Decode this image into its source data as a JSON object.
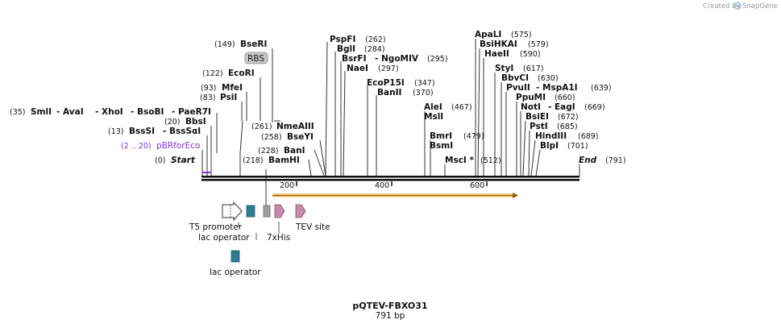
{
  "header": {
    "credit_prefix": "Created by",
    "credit_brand": "SnapGene"
  },
  "plasmid": {
    "name": "pQTEV-FBXO31",
    "length_label": "791 bp",
    "length": 791
  },
  "ends": {
    "start": {
      "label": "Start",
      "pos": "(0)"
    },
    "end": {
      "label": "End",
      "pos": "(791)"
    }
  },
  "primer": {
    "label": "pBRforEco",
    "range": "(2 .. 20)"
  },
  "ruler": {
    "ticks": [
      "200",
      "400",
      "600"
    ]
  },
  "enzymes_left": [
    {
      "pos": "(149)",
      "label": "BseRI"
    },
    {
      "pos": "(122)",
      "label": "EcoRI"
    },
    {
      "pos": "(93)",
      "label": "MfeI"
    },
    {
      "pos": "(83)",
      "label": "PsiI"
    },
    {
      "pos": "(35)",
      "label": "SmlI",
      "extra": [
        "- AvaI",
        "- XhoI",
        "- BsoBI",
        "- PaeR7I"
      ]
    },
    {
      "pos": "(20)",
      "label": "BbsI"
    },
    {
      "pos": "(13)",
      "label": "BssSI",
      "extra": [
        "- BssSαI"
      ]
    },
    {
      "pos": "(261)",
      "label": "NmeAIII"
    },
    {
      "pos": "(258)",
      "label": "BseYI"
    },
    {
      "pos": "(228)",
      "label": "BanI"
    },
    {
      "pos": "(218)",
      "label": "BamHI"
    }
  ],
  "enzymes_mid": [
    {
      "label": "PspFI",
      "pos": "(262)"
    },
    {
      "label": "BglI",
      "pos": "(284)"
    },
    {
      "label": "BsrFI",
      "pos": "(295)",
      "extra": "- NgoMIV"
    },
    {
      "label": "NaeI",
      "pos": "(297)"
    },
    {
      "label": "EcoP15I",
      "pos": "(347)"
    },
    {
      "label": "BanII",
      "pos": "(370)"
    },
    {
      "label": "AleI",
      "pos": "(467)"
    },
    {
      "label": "MslI",
      "pos": ""
    },
    {
      "label": "BmrI",
      "pos": "(479)"
    },
    {
      "label": "BsmI",
      "pos": ""
    },
    {
      "label": "MscI *",
      "pos": "(512)"
    }
  ],
  "enzymes_right": [
    {
      "label": "ApaLI",
      "pos": "(575)"
    },
    {
      "label": "BsiHKAI",
      "pos": "(579)"
    },
    {
      "label": "HaeII",
      "pos": "(590)"
    },
    {
      "label": "StyI",
      "pos": "(617)"
    },
    {
      "label": "BbvCI",
      "pos": "(630)"
    },
    {
      "label": "PvuII",
      "pos": "(639)",
      "extra": "- MspA1I"
    },
    {
      "label": "PpuMI",
      "pos": "(660)"
    },
    {
      "label": "NotI",
      "pos": "(669)",
      "extra": "- EagI"
    },
    {
      "label": "BsiEI",
      "pos": "(672)"
    },
    {
      "label": "PstI",
      "pos": "(685)"
    },
    {
      "label": "HindIII",
      "pos": "(689)"
    },
    {
      "label": "BlpI",
      "pos": "(701)"
    }
  ],
  "features": {
    "rbs": "RBS",
    "t5_promoter": "T5 promoter",
    "lac_operator_1": "lac operator",
    "his_tag": "7xHis",
    "tev_site": "TEV site",
    "lac_operator_2": "lac operator"
  },
  "colors": {
    "primer": "#8a2be2",
    "lac_operator": "#2e7d95",
    "his_tag": "#a0a0a0",
    "arrow_feature": "#c989ad",
    "orf_fill": "#f0b030",
    "backbone": "#111111",
    "rbs_box": "#c8c8c8"
  }
}
